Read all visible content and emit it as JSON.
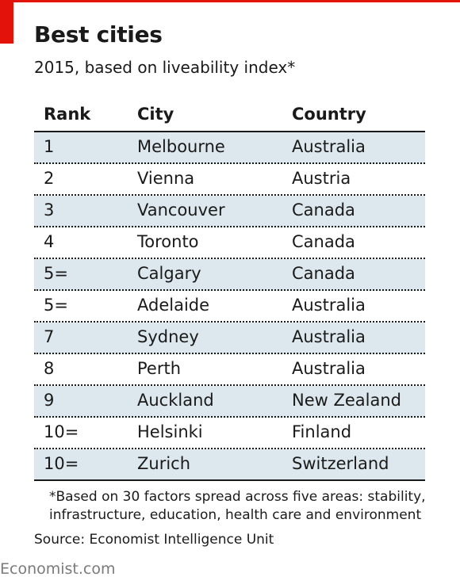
{
  "chart_data": {
    "type": "table",
    "title": "Best cities",
    "subtitle": "2015, based on liveability index*",
    "columns": [
      "Rank",
      "City",
      "Country"
    ],
    "rows": [
      {
        "rank": "1",
        "city": "Melbourne",
        "country": "Australia"
      },
      {
        "rank": "2",
        "city": "Vienna",
        "country": "Austria"
      },
      {
        "rank": "3",
        "city": "Vancouver",
        "country": "Canada"
      },
      {
        "rank": "4",
        "city": "Toronto",
        "country": "Canada"
      },
      {
        "rank": "5=",
        "city": "Calgary",
        "country": "Canada"
      },
      {
        "rank": "5=",
        "city": "Adelaide",
        "country": "Australia"
      },
      {
        "rank": "7",
        "city": "Sydney",
        "country": "Australia"
      },
      {
        "rank": "8",
        "city": "Perth",
        "country": "Australia"
      },
      {
        "rank": "9",
        "city": "Auckland",
        "country": "New Zealand"
      },
      {
        "rank": "10=",
        "city": "Helsinki",
        "country": "Finland"
      },
      {
        "rank": "10=",
        "city": "Zurich",
        "country": "Switzerland"
      }
    ],
    "footnote": "*Based on 30 factors spread across five areas: stability, infrastructure, education, health care and environment",
    "source": "Source: Economist Intelligence Unit"
  },
  "brand": "Economist.com",
  "colors": {
    "accent": "#e3120b",
    "row_shade": "#dde8ee"
  }
}
